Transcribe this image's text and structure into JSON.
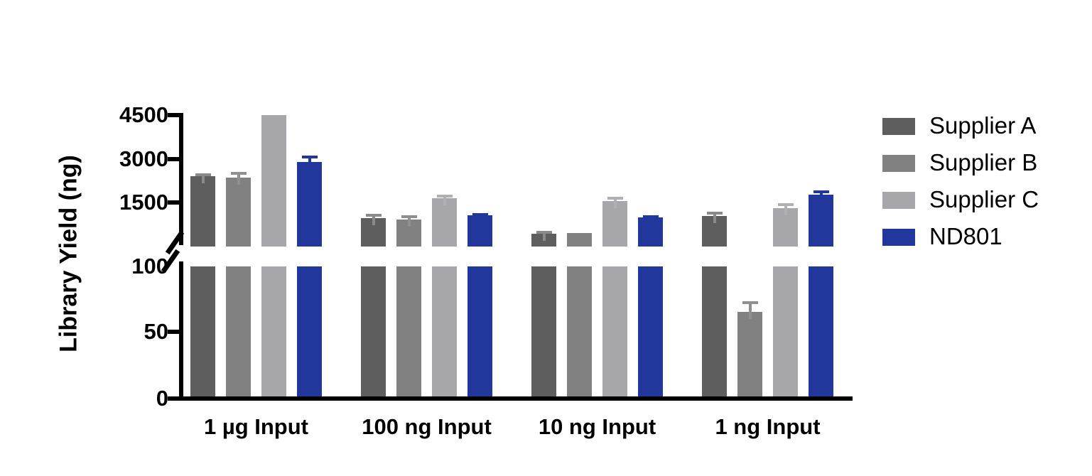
{
  "figure": {
    "background": "#ffffff",
    "text_color": "#000000"
  },
  "chart_data": {
    "type": "bar",
    "title": "",
    "xlabel": "",
    "ylabel": "Library Yield (ng)",
    "categories": [
      "1 µg Input",
      "100 ng Input",
      "10 ng Input",
      "1 ng Input"
    ],
    "series": [
      {
        "name": "Supplier A",
        "color": "#5E5E5E",
        "error_color": "#8A8A8A",
        "values": [
          2400,
          960,
          430,
          1040
        ],
        "errors": [
          60,
          110,
          35,
          90
        ]
      },
      {
        "name": "Supplier B",
        "color": "#818181",
        "error_color": "#8F8F8F",
        "values": [
          2360,
          925,
          440,
          65
        ],
        "errors": [
          150,
          85,
          20,
          7
        ]
      },
      {
        "name": "Supplier C",
        "color": "#A7A7AB",
        "error_color": "#B0B0B4",
        "values": [
          4500,
          1650,
          1560,
          1300
        ],
        "errors": [
          0,
          75,
          75,
          120
        ]
      },
      {
        "name": "ND801",
        "color": "#21379B",
        "error_color": "#21379B",
        "values": [
          2880,
          1060,
          980,
          1780
        ],
        "errors": [
          170,
          25,
          25,
          80
        ]
      }
    ],
    "axis": {
      "broken": true,
      "lower_segment": {
        "range": [
          0,
          100
        ],
        "ticks": [
          0,
          50
        ],
        "top_label": 100
      },
      "upper_segment": {
        "ticks": [
          1500,
          3000,
          4500
        ],
        "max_shown": 4500
      },
      "grid": false
    },
    "legend": {
      "position": "right",
      "entries": [
        "Supplier A",
        "Supplier B",
        "Supplier C",
        "ND801"
      ]
    },
    "error_bars": "upper half, T-cap"
  }
}
